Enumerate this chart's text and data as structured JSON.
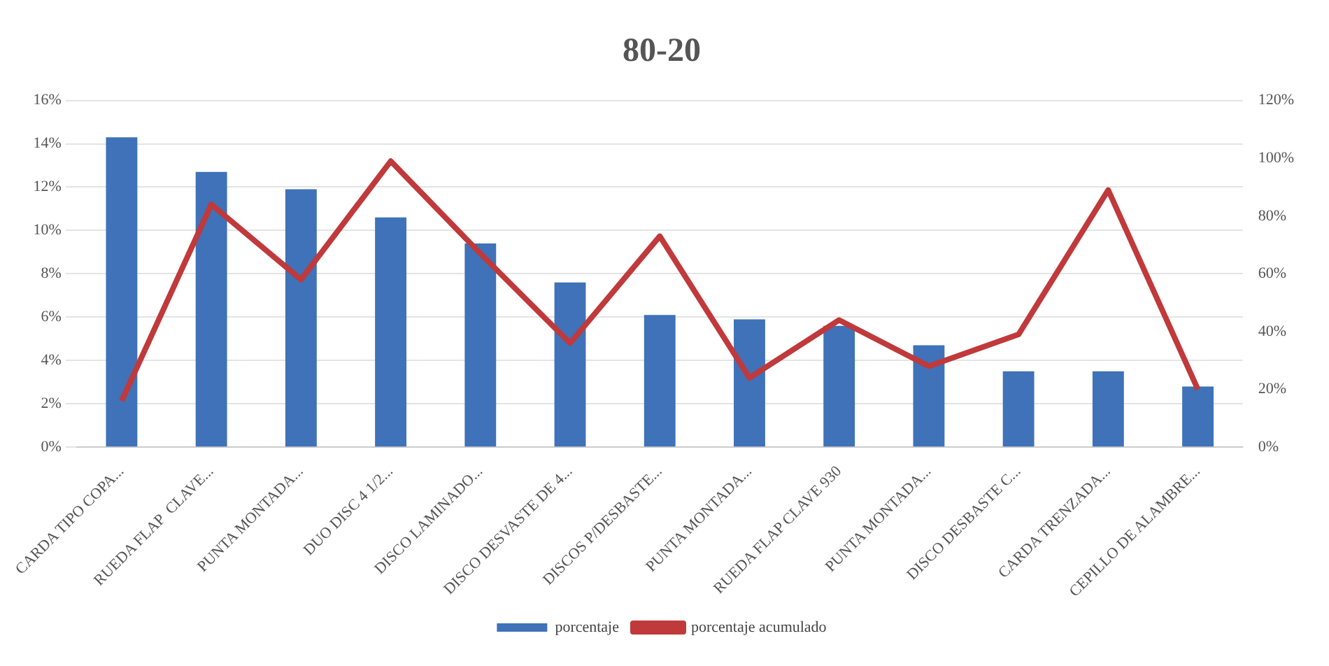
{
  "chart_data": {
    "type": "bar",
    "title": "80-20",
    "categories": [
      "CARDA TIPO COPA...",
      "RUEDA FLAP  CLAVE...",
      "PUNTA MONTADA...",
      "DUO DISC 4 1/2...",
      "DISCO LAMINADO...",
      "DISCO DESVASTE DE 4...",
      "DISCOS P/DESBASTE...",
      "PUNTA MONTADA...",
      "RUEDA FLAP CLAVE 930",
      "PUNTA MONTADA...",
      "DISCO DESBASTE C...",
      "CARDA TRENZADA...",
      "CEPILLO DE ALAMBRE..."
    ],
    "series": [
      {
        "name": "porcentaje",
        "color": "#3f72b8",
        "values": [
          14.3,
          12.7,
          11.9,
          10.6,
          9.4,
          7.6,
          6.1,
          5.9,
          5.6,
          4.7,
          3.5,
          3.5,
          2.8
        ]
      },
      {
        "name": "porcentaje acumulado",
        "type": "line",
        "axis": "y2",
        "color": "#c0393b",
        "values": [
          16,
          84,
          58,
          99,
          67,
          36,
          73,
          24,
          44,
          28,
          39,
          89,
          20
        ]
      }
    ],
    "ylim": [
      0,
      16
    ],
    "yticks": [
      {
        "value": 0,
        "label": "0%"
      },
      {
        "value": 2,
        "label": "2%"
      },
      {
        "value": 4,
        "label": "4%"
      },
      {
        "value": 6,
        "label": "6%"
      },
      {
        "value": 8,
        "label": "8%"
      },
      {
        "value": 10,
        "label": "10%"
      },
      {
        "value": 12,
        "label": "12%"
      },
      {
        "value": 14,
        "label": "14%"
      },
      {
        "value": 16,
        "label": "16%"
      }
    ],
    "y2lim": [
      0,
      120
    ],
    "y2ticks": [
      {
        "value": 0,
        "label": "0%"
      },
      {
        "value": 20,
        "label": "20%"
      },
      {
        "value": 40,
        "label": "40%"
      },
      {
        "value": 60,
        "label": "60%"
      },
      {
        "value": 80,
        "label": "80%"
      },
      {
        "value": 100,
        "label": "100%"
      },
      {
        "value": 120,
        "label": "120%"
      }
    ],
    "grid": "y",
    "legend": "bottom",
    "marker": "none",
    "line_style": "solid"
  }
}
